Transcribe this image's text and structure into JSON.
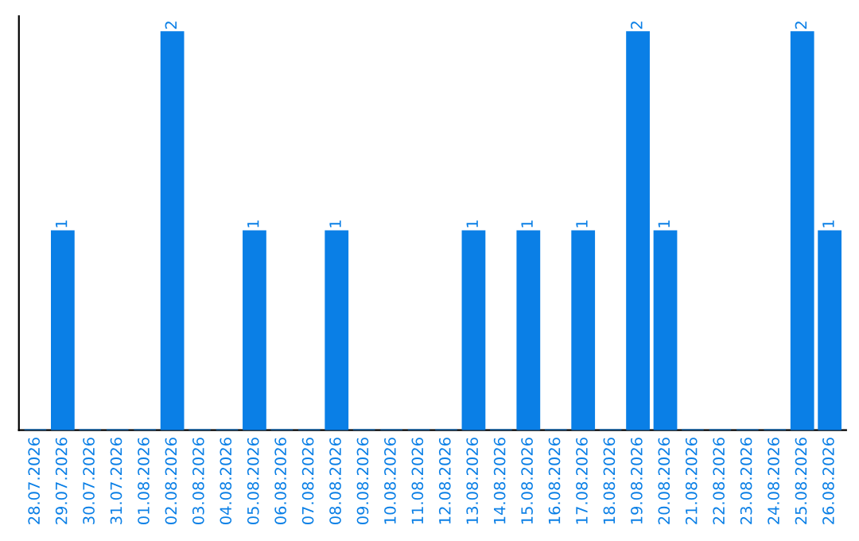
{
  "chart_data": {
    "type": "bar",
    "categories": [
      "28.07.2026",
      "29.07.2026",
      "30.07.2026",
      "31.07.2026",
      "01.08.2026",
      "02.08.2026",
      "03.08.2026",
      "04.08.2026",
      "05.08.2026",
      "06.08.2026",
      "07.08.2026",
      "08.08.2026",
      "09.08.2026",
      "10.08.2026",
      "11.08.2026",
      "12.08.2026",
      "13.08.2026",
      "14.08.2026",
      "15.08.2026",
      "16.08.2026",
      "17.08.2026",
      "18.08.2026",
      "19.08.2026",
      "20.08.2026",
      "21.08.2026",
      "22.08.2026",
      "23.08.2026",
      "24.08.2026",
      "25.08.2026",
      "26.08.2026"
    ],
    "values": [
      0,
      1,
      0,
      0,
      0,
      2,
      0,
      0,
      1,
      0,
      0,
      1,
      0,
      0,
      0,
      0,
      1,
      0,
      1,
      0,
      1,
      0,
      2,
      1,
      0,
      0,
      0,
      0,
      2,
      1
    ],
    "value_labels": [
      null,
      "1",
      null,
      null,
      null,
      "2",
      null,
      null,
      "1",
      null,
      null,
      "1",
      null,
      null,
      null,
      null,
      "1",
      null,
      "1",
      null,
      "1",
      null,
      "2",
      "1",
      null,
      null,
      null,
      null,
      "2",
      "1"
    ],
    "color": "#0a7fe6",
    "grid": false,
    "legend": false
  }
}
